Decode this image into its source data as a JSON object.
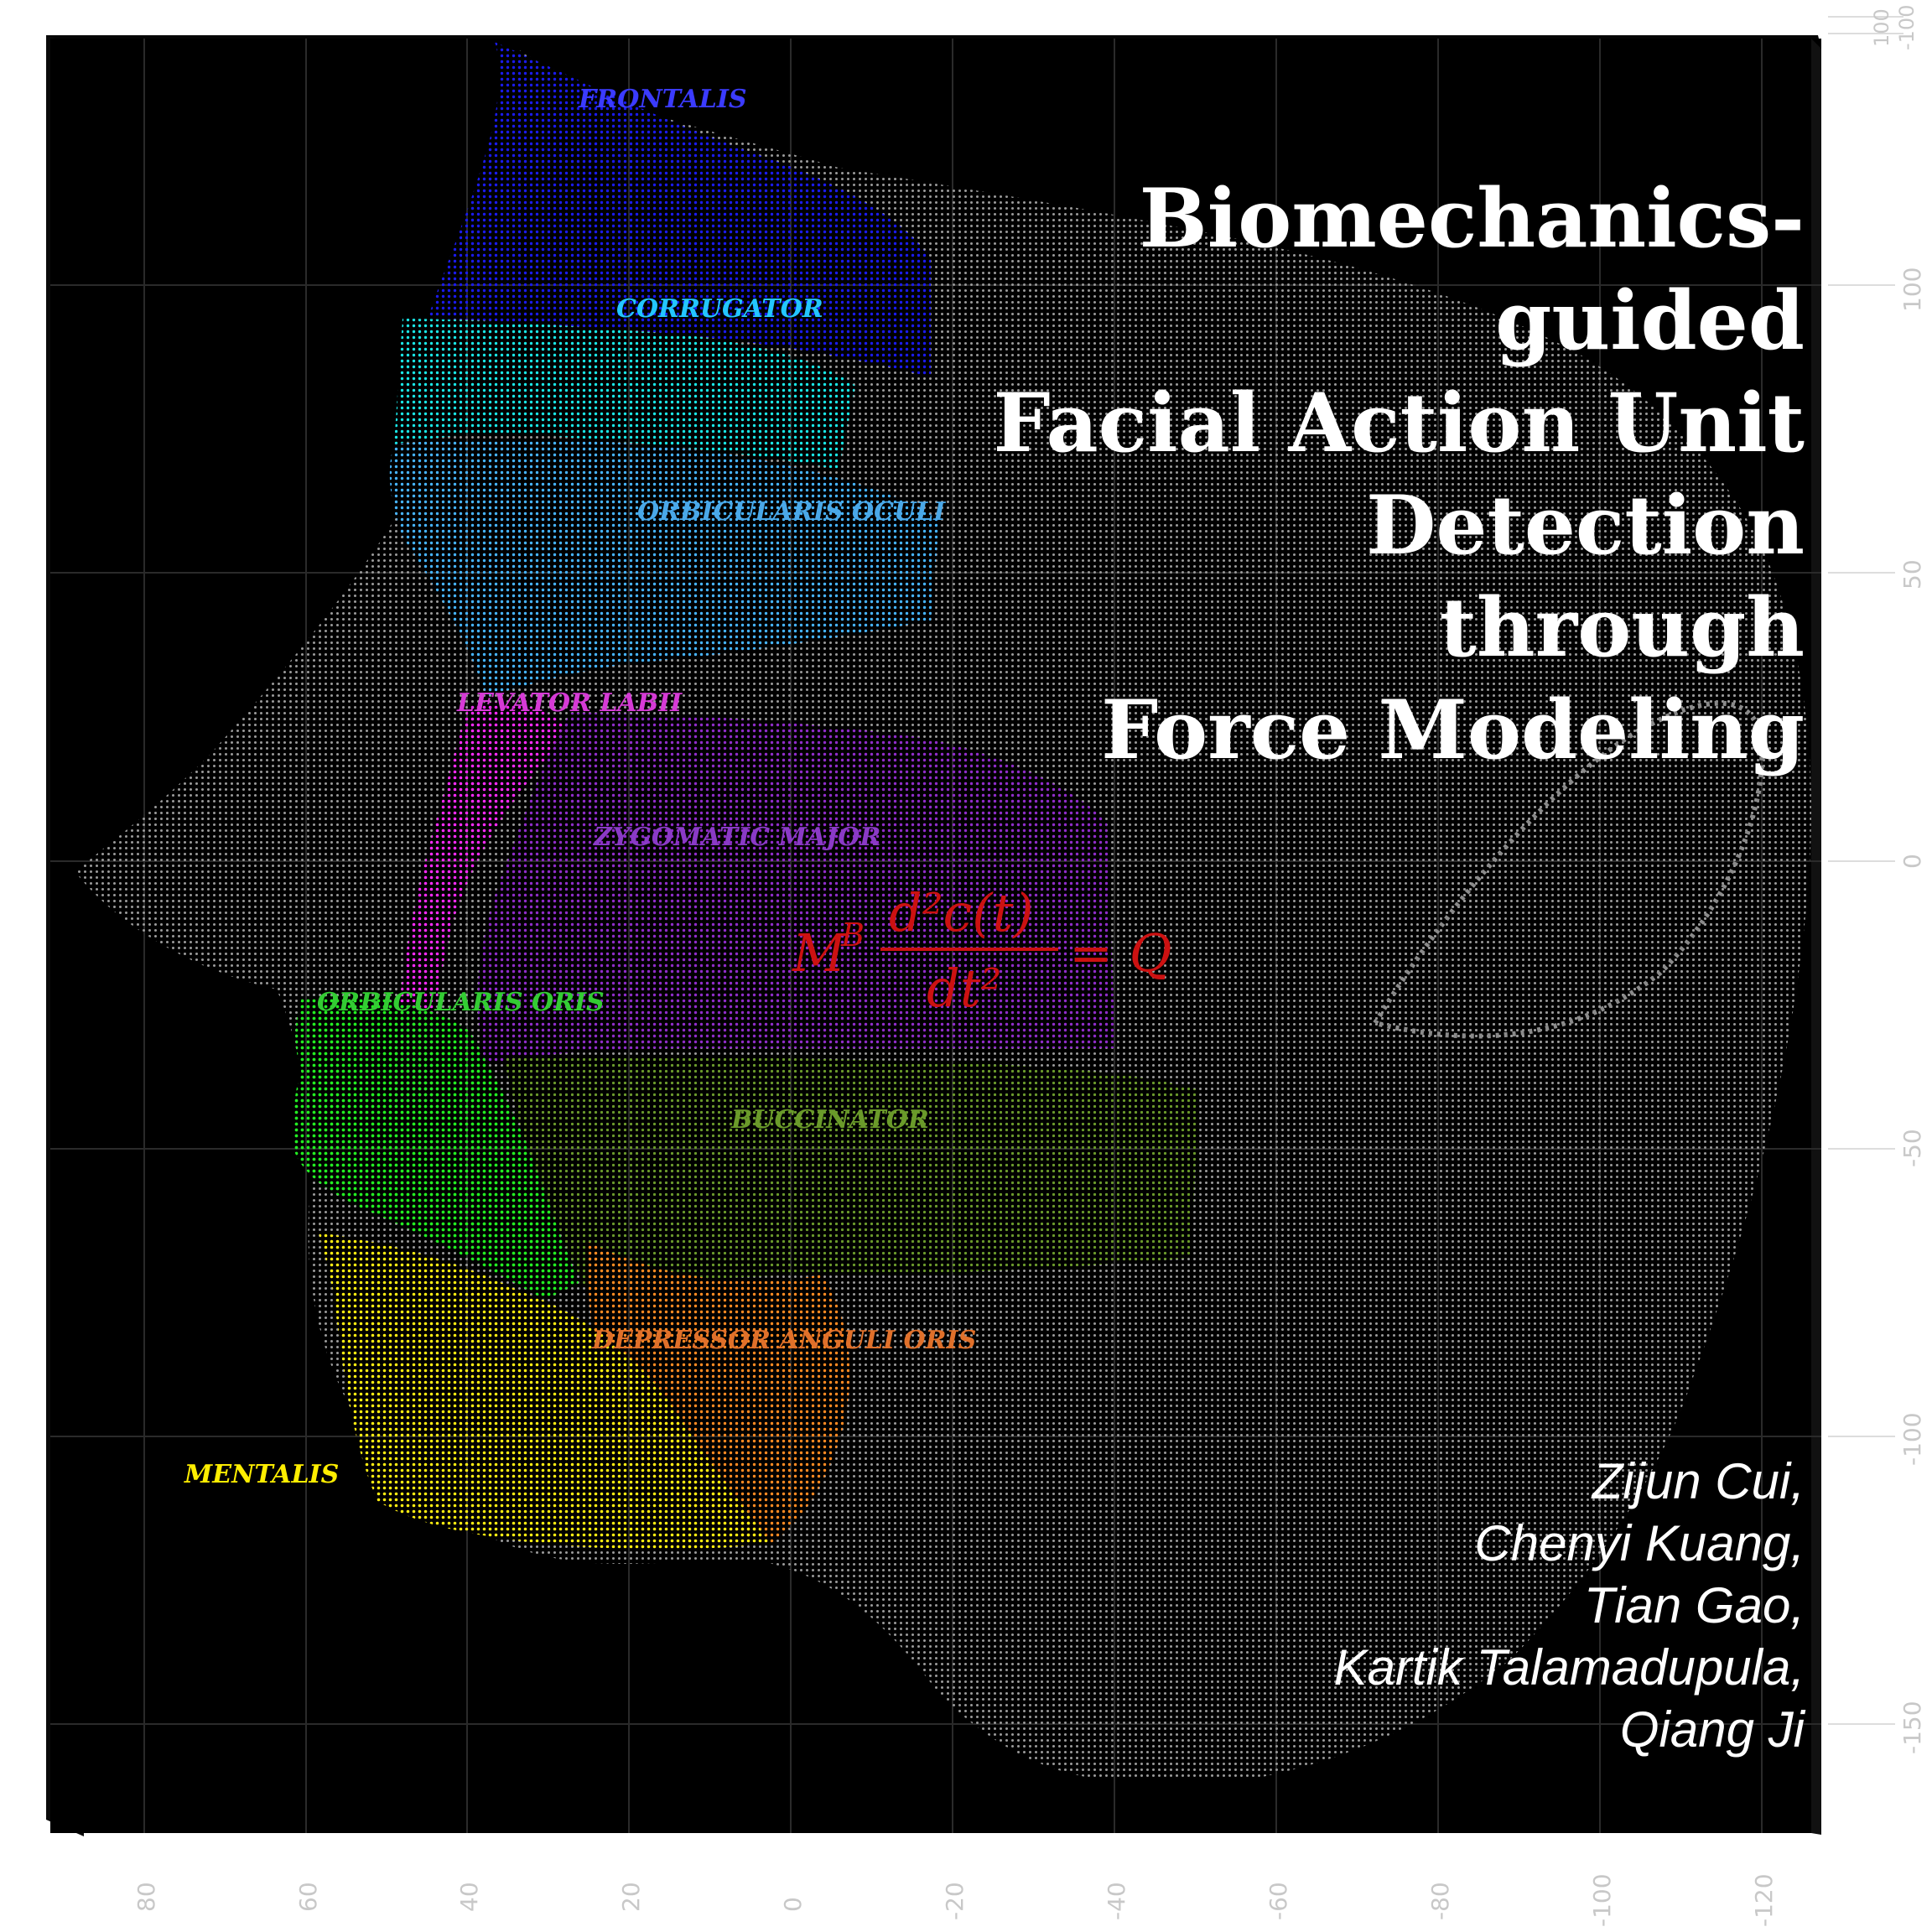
{
  "title_lines": [
    "Biomechanics-guided",
    "Facial Action Unit",
    "Detection",
    "through",
    "Force Modeling"
  ],
  "authors": [
    "Zijun Cui,",
    "Chenyi Kuang,",
    "Tian Gao,",
    "Kartik Talamadupula,",
    "Qiang Ji"
  ],
  "muscle_labels": [
    {
      "text": "FRONTALIS",
      "color": "#3b3bff"
    },
    {
      "text": "CORRUGATOR",
      "color": "#23c6ff"
    },
    {
      "text": "ORBICULARIS OCULI",
      "color": "#4aa8e8"
    },
    {
      "text": "LEVATOR LABII",
      "color": "#d63ad6"
    },
    {
      "text": "ZYGOMATIC MAJOR",
      "color": "#8a3ac6"
    },
    {
      "text": "ORBICULARIS ORIS",
      "color": "#33cc33"
    },
    {
      "text": "BUCCINATOR",
      "color": "#6a9a2a"
    },
    {
      "text": "DEPRESSOR ANGULI ORIS",
      "color": "#e0702a"
    },
    {
      "text": "MENTALIS",
      "color": "#ffee00"
    }
  ],
  "equation": {
    "lhs_symbol": "M",
    "lhs_superscript": "B",
    "numerator": "d²c(t)",
    "denominator": "dt²",
    "rhs": "= Q",
    "color": "#cc1111"
  },
  "axis_bottom_ticks": [
    "80",
    "60",
    "40",
    "20",
    "0",
    "-20",
    "-40",
    "-60",
    "-80",
    "-100",
    "-120"
  ],
  "axis_right_ticks": [
    "100",
    "50",
    "0",
    "-50",
    "-100",
    "-150"
  ],
  "axis_top_right_ticks": [
    "100",
    "-100"
  ],
  "colors": {
    "background": "#000000",
    "pointcloud_gray": "#9a9a9a",
    "axis_text": "#c8c8c8",
    "frontalis": "#1a1aee",
    "corrugator": "#19e6e6",
    "orbicularis_oculi": "#46b4ff",
    "levator_labii": "#ff2bff",
    "zygomatic": "#8f2cc9",
    "orbicularis_oris": "#22ee22",
    "buccinator": "#6a9a2a",
    "depressor": "#ff8a22",
    "mentalis": "#ffee11"
  }
}
